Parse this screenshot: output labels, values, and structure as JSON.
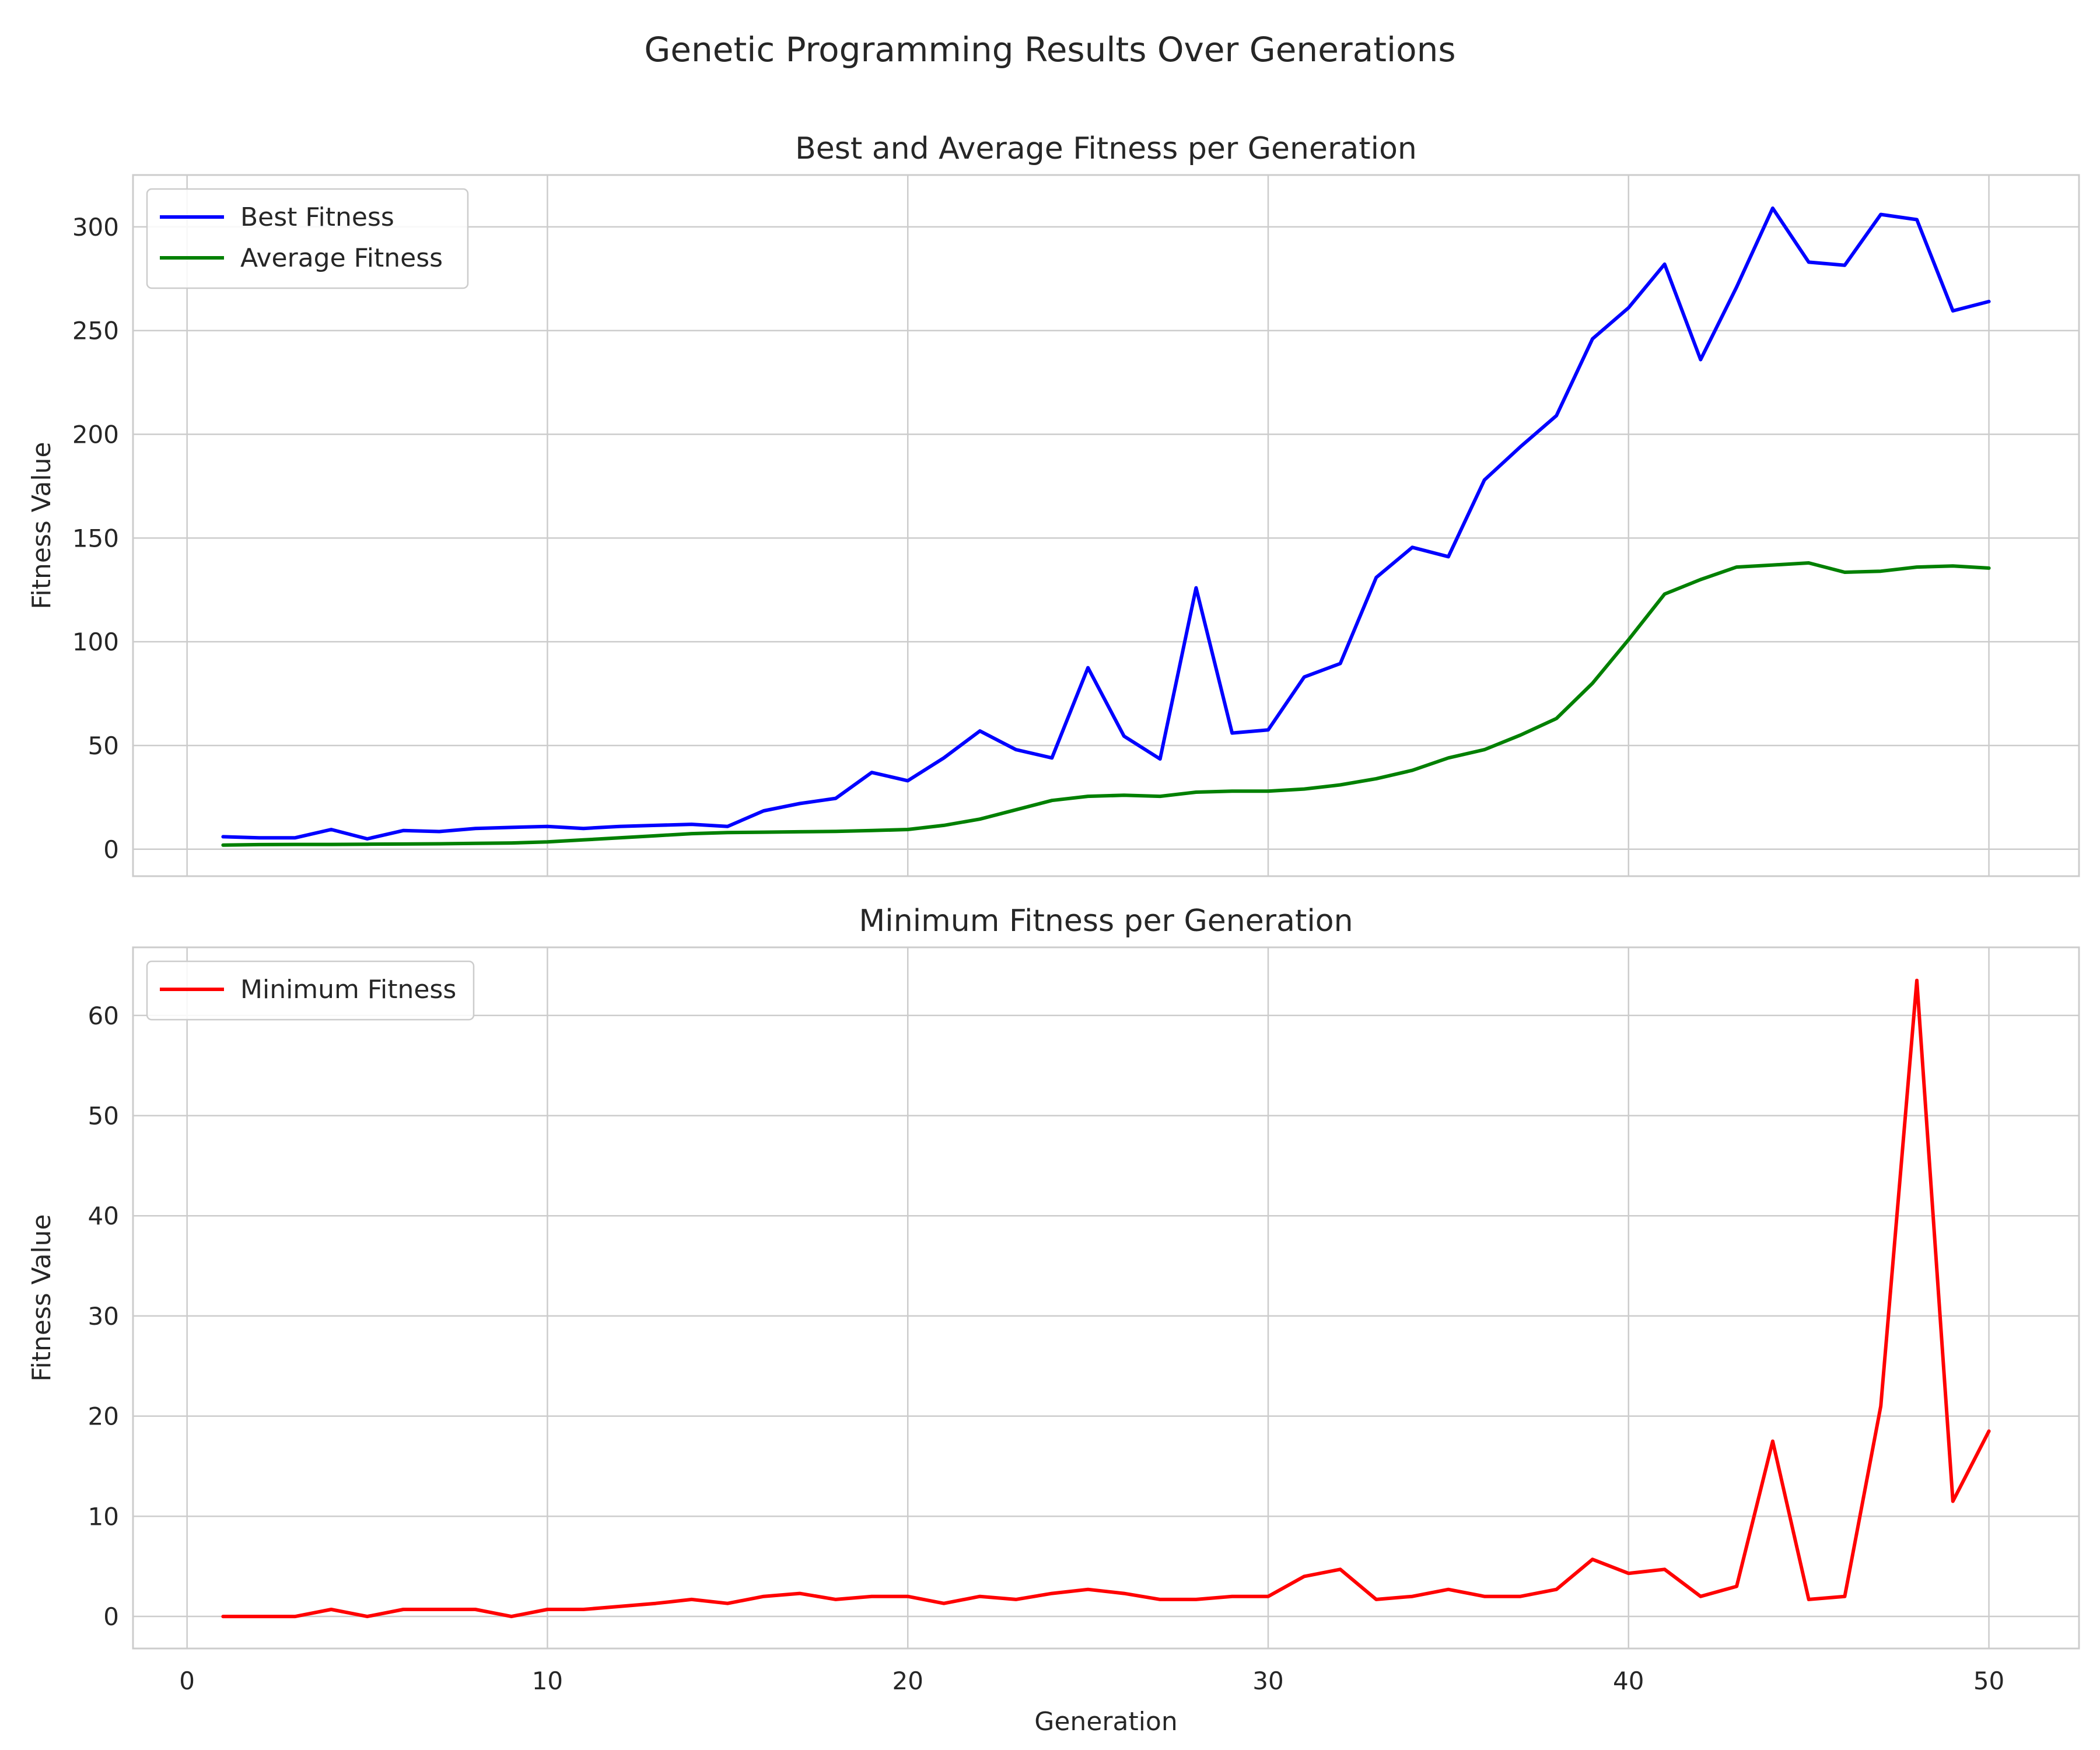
{
  "figure": {
    "suptitle": "Genetic Programming Results Over Generations"
  },
  "chart_data": [
    {
      "type": "line",
      "title": "Best and Average Fitness per Generation",
      "xlabel": "",
      "ylabel": "Fitness Value",
      "xlim": [
        -1.5,
        52.5
      ],
      "ylim": [
        -13,
        325
      ],
      "xticks": [
        0,
        10,
        20,
        30,
        40,
        50
      ],
      "yticks": [
        0,
        50,
        100,
        150,
        200,
        250,
        300
      ],
      "grid": true,
      "legend": "top-left",
      "x": [
        1,
        2,
        3,
        4,
        5,
        6,
        7,
        8,
        9,
        10,
        11,
        12,
        13,
        14,
        15,
        16,
        17,
        18,
        19,
        20,
        21,
        22,
        23,
        24,
        25,
        26,
        27,
        28,
        29,
        30,
        31,
        32,
        33,
        34,
        35,
        36,
        37,
        38,
        39,
        40,
        41,
        42,
        43,
        44,
        45,
        46,
        47,
        48,
        49,
        50
      ],
      "series": [
        {
          "name": "Best Fitness",
          "color": "#0000ff",
          "values": [
            6,
            5.5,
            5.5,
            9.5,
            5,
            9,
            8.5,
            10,
            10.5,
            11,
            10,
            11,
            11.5,
            12,
            11,
            18.5,
            22,
            24.5,
            37,
            33,
            44,
            57,
            48,
            44,
            87.5,
            54.5,
            43.5,
            126,
            56,
            57.5,
            83,
            89.5,
            131,
            145.5,
            141,
            178,
            194,
            209,
            246,
            261,
            282,
            236,
            271,
            309,
            283,
            281.5,
            306,
            303.5,
            259.5,
            264
          ]
        },
        {
          "name": "Average Fitness",
          "color": "#008000",
          "values": [
            2,
            2.2,
            2.3,
            2.3,
            2.4,
            2.5,
            2.6,
            2.8,
            3,
            3.5,
            4.5,
            5.5,
            6.5,
            7.5,
            8,
            8.2,
            8.4,
            8.6,
            9,
            9.5,
            11.5,
            14.5,
            19,
            23.5,
            25.5,
            26,
            25.5,
            27.5,
            28,
            28,
            29,
            31,
            34,
            38,
            44,
            48,
            55,
            63,
            80,
            101,
            123,
            130,
            136,
            137,
            138,
            133.5,
            134,
            136,
            136.5,
            135.5
          ]
        }
      ]
    },
    {
      "type": "line",
      "title": "Minimum Fitness per Generation",
      "xlabel": "Generation",
      "ylabel": "Fitness Value",
      "xlim": [
        -1.5,
        52.5
      ],
      "ylim": [
        -3.2,
        66.8
      ],
      "xticks": [
        0,
        10,
        20,
        30,
        40,
        50
      ],
      "yticks": [
        0,
        10,
        20,
        30,
        40,
        50,
        60
      ],
      "grid": true,
      "legend": "top-left",
      "x": [
        1,
        2,
        3,
        4,
        5,
        6,
        7,
        8,
        9,
        10,
        11,
        12,
        13,
        14,
        15,
        16,
        17,
        18,
        19,
        20,
        21,
        22,
        23,
        24,
        25,
        26,
        27,
        28,
        29,
        30,
        31,
        32,
        33,
        34,
        35,
        36,
        37,
        38,
        39,
        40,
        41,
        42,
        43,
        44,
        45,
        46,
        47,
        48,
        49,
        50
      ],
      "series": [
        {
          "name": "Minimum Fitness",
          "color": "#ff0000",
          "values": [
            0,
            0,
            0,
            0.7,
            0,
            0.7,
            0.7,
            0.7,
            0,
            0.7,
            0.7,
            1,
            1.3,
            1.7,
            1.3,
            2,
            2.3,
            1.7,
            2,
            2,
            1.3,
            2,
            1.7,
            2.3,
            2.7,
            2.3,
            1.7,
            1.7,
            2,
            2,
            4,
            4.7,
            1.7,
            2,
            2.7,
            2,
            2,
            2.7,
            5.7,
            4.3,
            4.7,
            2,
            3,
            17.5,
            1.7,
            2,
            21,
            63.5,
            11.5,
            18.5
          ]
        }
      ]
    }
  ]
}
